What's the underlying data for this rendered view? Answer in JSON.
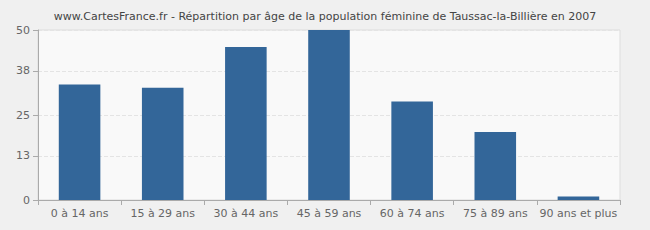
{
  "chart_data": {
    "type": "bar",
    "title": "www.CartesFrance.fr - Répartition par âge de la population féminine de Taussac-la-Billière en 2007",
    "categories": [
      "0 à 14 ans",
      "15 à 29 ans",
      "30 à 44 ans",
      "45 à 59 ans",
      "60 à 74 ans",
      "75 à 89 ans",
      "90 ans et plus"
    ],
    "values": [
      34,
      33,
      45,
      50,
      29,
      20,
      1
    ],
    "color": "#336699",
    "ylim": [
      0,
      50
    ],
    "yticks": [
      0,
      13,
      25,
      38,
      50
    ],
    "grid": true
  }
}
